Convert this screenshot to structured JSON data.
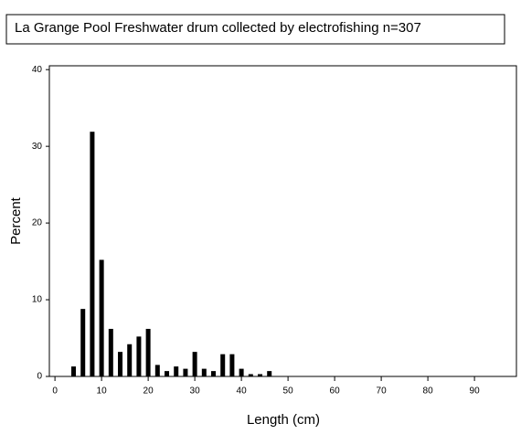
{
  "chart_data": {
    "type": "bar",
    "title": "La Grange Pool Freshwater drum collected by electrofishing   n=307",
    "x_label": "Length (cm)",
    "y_label": "Percent",
    "x": [
      4,
      6,
      8,
      10,
      12,
      14,
      16,
      18,
      20,
      22,
      24,
      26,
      28,
      30,
      32,
      34,
      36,
      38,
      40,
      42,
      44,
      46
    ],
    "values": [
      1.3,
      8.8,
      31.9,
      15.2,
      6.2,
      3.2,
      4.2,
      5.2,
      6.2,
      1.5,
      0.7,
      1.3,
      1.0,
      3.2,
      1.0,
      0.7,
      2.9,
      2.9,
      1.0,
      0.3,
      0.3,
      0.7
    ],
    "color": "#000000",
    "xlim": [
      -1.2,
      99
    ],
    "xticks": [
      0,
      10,
      20,
      30,
      40,
      50,
      60,
      70,
      80,
      90
    ],
    "ylim": [
      0,
      40.5
    ],
    "yticks": [
      0,
      10,
      20,
      30,
      40
    ],
    "grid": false
  }
}
